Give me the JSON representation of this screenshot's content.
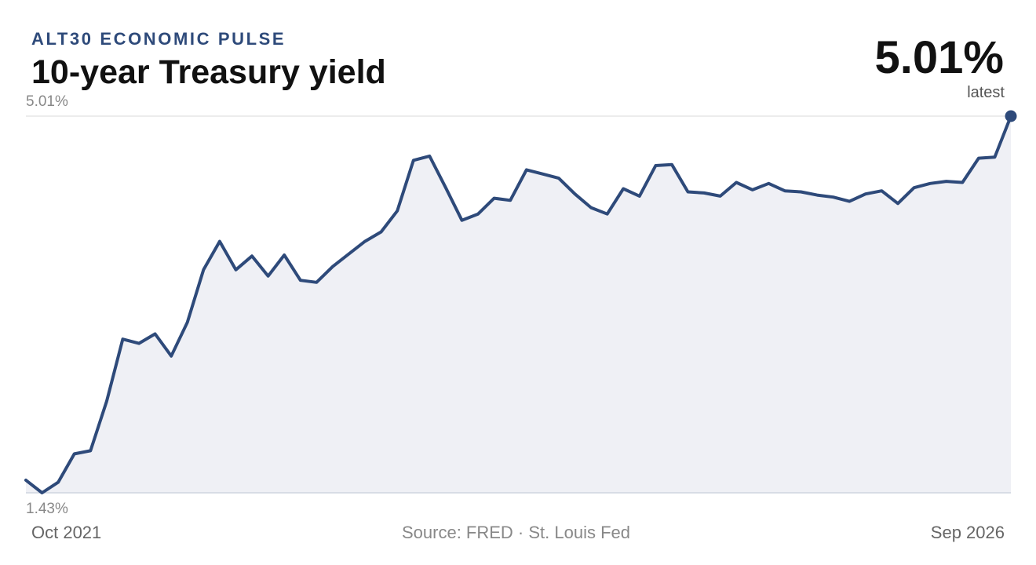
{
  "header": {
    "kicker": "ALT30 ECONOMIC PULSE",
    "title": "10-year Treasury yield",
    "latest_value": "5.01%",
    "latest_label": "latest"
  },
  "footer": {
    "source": "Source: FRED · St. Louis Fed"
  },
  "colors": {
    "line": "#2e4a7a",
    "area_fill": "#eff0f5",
    "gridline": "#e6e6e6",
    "baseline": "#cfd6e0"
  },
  "chart_data": {
    "type": "area",
    "title": "10-year Treasury yield",
    "y_unit": "%",
    "ylim": [
      1.43,
      5.01
    ],
    "y_tick_labels": [
      "5.01%",
      "1.43%"
    ],
    "x_start_label": "Oct 2021",
    "x_end_label": "Sep 2026",
    "x_start": "2021-10",
    "x_end": "2026-09",
    "grid": true,
    "legend": "none",
    "series": [
      {
        "values": [
          1.55,
          1.43,
          1.53,
          1.8,
          1.83,
          2.3,
          2.89,
          2.85,
          2.94,
          2.73,
          3.05,
          3.55,
          3.82,
          3.55,
          3.68,
          3.49,
          3.69,
          3.45,
          3.43,
          3.58,
          3.7,
          3.82,
          3.91,
          4.11,
          4.59,
          4.63,
          4.33,
          4.02,
          4.08,
          4.23,
          4.21,
          4.5,
          4.46,
          4.42,
          4.27,
          4.14,
          4.08,
          4.32,
          4.25,
          4.54,
          4.55,
          4.29,
          4.28,
          4.25,
          4.38,
          4.31,
          4.37,
          4.3,
          4.29,
          4.26,
          4.24,
          4.2,
          4.27,
          4.3,
          4.18,
          4.33,
          4.37,
          4.39,
          4.38,
          4.61,
          4.62,
          5.01
        ]
      }
    ]
  }
}
